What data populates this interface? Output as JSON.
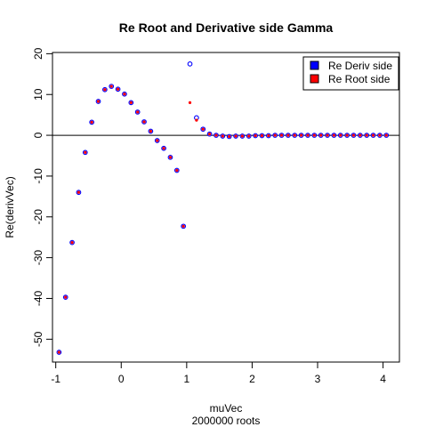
{
  "chart_data": {
    "type": "scatter",
    "title": "Re Root and Derivative side Gamma",
    "xlabel": "muVec",
    "xsublabel": "2000000 roots",
    "ylabel": "Re(derivVec)",
    "xlim": [
      -1.05,
      4.25
    ],
    "ylim": [
      -55.6,
      20.3
    ],
    "xticks": [
      -1,
      0,
      1,
      2,
      3,
      4
    ],
    "yticks": [
      -50,
      -40,
      -30,
      -20,
      -10,
      0,
      10,
      20
    ],
    "hline": 0,
    "grid": false,
    "legend_position": "top-right",
    "series": [
      {
        "name": "Re Deriv side",
        "color": "#0000ff",
        "marker": "open-circle",
        "x": [
          -0.95,
          -0.85,
          -0.75,
          -0.65,
          -0.55,
          -0.45,
          -0.35,
          -0.25,
          -0.15,
          -0.05,
          0.05,
          0.15,
          0.25,
          0.35,
          0.45,
          0.55,
          0.65,
          0.75,
          0.85,
          0.95,
          1.05,
          1.15,
          1.25,
          1.35,
          1.45,
          1.55,
          1.65,
          1.75,
          1.85,
          1.95,
          2.05,
          2.15,
          2.25,
          2.35,
          2.45,
          2.55,
          2.65,
          2.75,
          2.85,
          2.95,
          3.05,
          3.15,
          3.25,
          3.35,
          3.45,
          3.55,
          3.65,
          3.75,
          3.85,
          3.95,
          4.05
        ],
        "y": [
          -53.2,
          -39.7,
          -26.3,
          -14.0,
          -4.2,
          3.2,
          8.3,
          11.2,
          12.0,
          11.3,
          10.1,
          8.0,
          5.7,
          3.3,
          1.0,
          -1.3,
          -3.2,
          -5.4,
          -8.6,
          -22.3,
          17.5,
          4.3,
          1.5,
          0.3,
          0.0,
          -0.2,
          -0.3,
          -0.2,
          -0.2,
          -0.2,
          -0.1,
          -0.1,
          -0.1,
          0.0,
          0.0,
          0.0,
          0.0,
          0.0,
          0.0,
          0.0,
          0.0,
          0.0,
          0.0,
          0.0,
          0.0,
          0.0,
          0.0,
          0.0,
          0.0,
          0.0,
          0.0
        ]
      },
      {
        "name": "Re Root side",
        "color": "#ff0000",
        "marker": "filled-dot",
        "x": [
          -0.95,
          -0.85,
          -0.75,
          -0.65,
          -0.55,
          -0.45,
          -0.35,
          -0.25,
          -0.15,
          -0.05,
          0.05,
          0.15,
          0.25,
          0.35,
          0.45,
          0.55,
          0.65,
          0.75,
          0.85,
          0.95,
          1.05,
          1.15,
          1.25,
          1.35,
          1.45,
          1.55,
          1.65,
          1.75,
          1.85,
          1.95,
          2.05,
          2.15,
          2.25,
          2.35,
          2.45,
          2.55,
          2.65,
          2.75,
          2.85,
          2.95,
          3.05,
          3.15,
          3.25,
          3.35,
          3.45,
          3.55,
          3.65,
          3.75,
          3.85,
          3.95,
          4.05
        ],
        "y": [
          -53.2,
          -39.7,
          -26.3,
          -14.0,
          -4.2,
          3.2,
          8.3,
          11.2,
          12.0,
          11.3,
          10.1,
          8.0,
          5.7,
          3.3,
          1.0,
          -1.3,
          -3.2,
          -5.4,
          -8.6,
          -22.3,
          8.0,
          3.7,
          1.5,
          0.3,
          0.0,
          -0.2,
          -0.3,
          -0.2,
          -0.2,
          -0.2,
          -0.1,
          -0.1,
          -0.1,
          0.0,
          0.0,
          0.0,
          0.0,
          0.0,
          0.0,
          0.0,
          0.0,
          0.0,
          0.0,
          0.0,
          0.0,
          0.0,
          0.0,
          0.0,
          0.0,
          0.0,
          0.0
        ]
      }
    ]
  }
}
